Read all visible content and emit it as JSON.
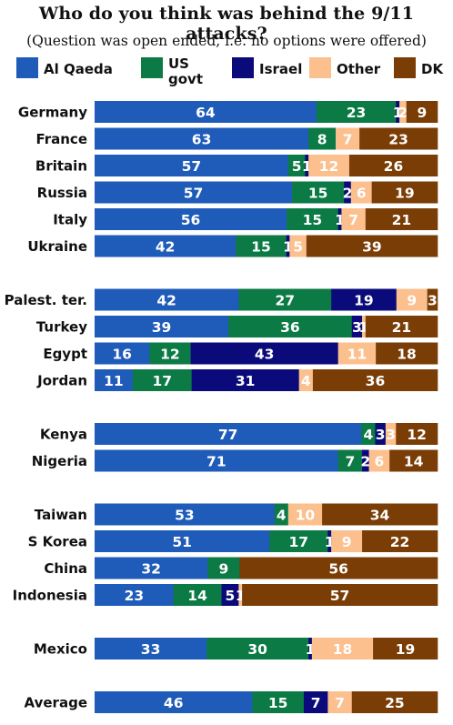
{
  "chart_data": {
    "type": "bar",
    "orientation": "horizontal",
    "stacked": true,
    "title": "Who do you think was behind the 9/11 attacks?",
    "subtitle": "(Question was open ended, i.e. no options were offered)",
    "legend_position": "top",
    "series": [
      {
        "name": "Al Qaeda",
        "color": "#1f5bb8"
      },
      {
        "name": "US govt",
        "color": "#0b7a45"
      },
      {
        "name": "Israel",
        "color": "#0a0a7a"
      },
      {
        "name": "Other",
        "color": "#fcc08f"
      },
      {
        "name": "DK",
        "color": "#7a3d06"
      }
    ],
    "groups": [
      [
        {
          "country": "Germany",
          "values": [
            64,
            23,
            1,
            2,
            9
          ]
        },
        {
          "country": "France",
          "values": [
            63,
            8,
            0,
            7,
            23
          ]
        },
        {
          "country": "Britain",
          "values": [
            57,
            5,
            1,
            12,
            26
          ]
        },
        {
          "country": "Russia",
          "values": [
            57,
            15,
            2,
            6,
            19
          ]
        },
        {
          "country": "Italy",
          "values": [
            56,
            15,
            1,
            7,
            21
          ]
        },
        {
          "country": "Ukraine",
          "values": [
            42,
            15,
            1,
            5,
            39
          ]
        }
      ],
      [
        {
          "country": "Palest. ter.",
          "values": [
            42,
            27,
            19,
            9,
            3
          ]
        },
        {
          "country": "Turkey",
          "values": [
            39,
            36,
            3,
            1,
            21
          ]
        },
        {
          "country": "Egypt",
          "values": [
            16,
            12,
            43,
            11,
            18
          ]
        },
        {
          "country": "Jordan",
          "values": [
            11,
            17,
            31,
            4,
            36
          ]
        }
      ],
      [
        {
          "country": "Kenya",
          "values": [
            77,
            4,
            3,
            3,
            12
          ]
        },
        {
          "country": "Nigeria",
          "values": [
            71,
            7,
            2,
            6,
            14
          ]
        }
      ],
      [
        {
          "country": "Taiwan",
          "values": [
            53,
            4,
            0,
            10,
            34
          ]
        },
        {
          "country": "S Korea",
          "values": [
            51,
            17,
            1,
            9,
            22
          ]
        },
        {
          "country": "China",
          "values": [
            32,
            9,
            0,
            0,
            56
          ]
        },
        {
          "country": "Indonesia",
          "values": [
            23,
            14,
            5,
            1,
            57
          ]
        }
      ],
      [
        {
          "country": "Mexico",
          "values": [
            33,
            30,
            1,
            18,
            19
          ]
        }
      ],
      [
        {
          "country": "Average",
          "values": [
            46,
            15,
            7,
            7,
            25
          ]
        }
      ]
    ]
  },
  "legend_labels": [
    "Al Qaeda",
    "US\ngovt",
    "Israel",
    "Other",
    "DK"
  ]
}
